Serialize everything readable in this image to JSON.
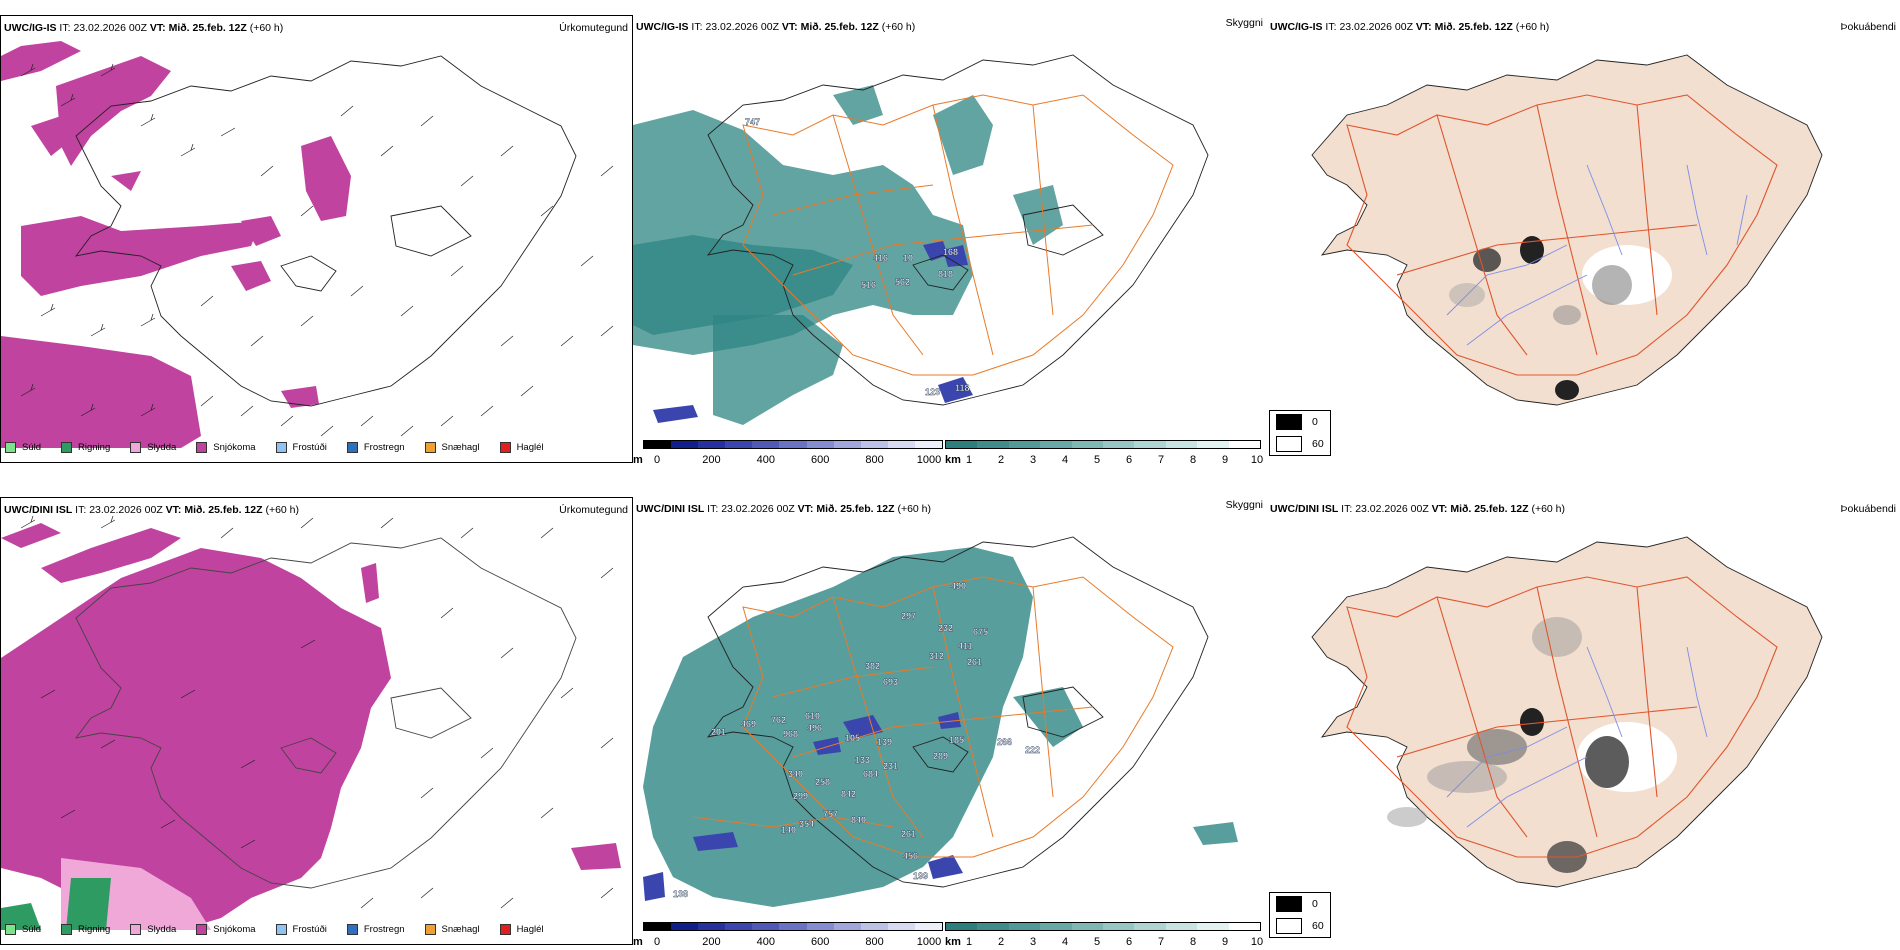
{
  "rows": [
    {
      "model": "UWC/IG-IS",
      "it_label": "IT:",
      "it_value": "23.02.2026 00Z",
      "vt_label": "VT:",
      "vt_value": "Mið. 25.feb. 12Z",
      "lead": "(+60 h)",
      "vis_labels": [
        "747",
        "416",
        "10",
        "168",
        "516",
        "562",
        "818",
        "123",
        "118"
      ]
    },
    {
      "model": "UWC/DINI ISL",
      "it_label": "IT:",
      "it_value": "23.02.2026 00Z",
      "vt_label": "VT:",
      "vt_value": "Mið. 25.feb. 12Z",
      "lead": "(+60 h)",
      "vis_labels": [
        "490",
        "297",
        "232",
        "675",
        "411",
        "312",
        "261",
        "382",
        "693",
        "201",
        "469",
        "762",
        "610",
        "968",
        "496",
        "105",
        "139",
        "185",
        "266",
        "222",
        "133",
        "289",
        "684",
        "231",
        "340",
        "258",
        "299",
        "842",
        "757",
        "840",
        "261",
        "456",
        "199",
        "138",
        "354",
        "140"
      ]
    }
  ],
  "panel_titles": {
    "precip": "Úrkomutegund",
    "visibility": "Skyggni",
    "fog": "Þokuábendi"
  },
  "precip_legend": [
    {
      "label": "Súld",
      "color": "#7de38a"
    },
    {
      "label": "Rigning",
      "color": "#2e9b63"
    },
    {
      "label": "Slydda",
      "color": "#f0a8d8"
    },
    {
      "label": "Snjókoma",
      "color": "#c0439f"
    },
    {
      "label": "Frostúði",
      "color": "#8fc3f2"
    },
    {
      "label": "Frostregn",
      "color": "#2f6fbf"
    },
    {
      "label": "Snæhagl",
      "color": "#f0a030"
    },
    {
      "label": "Haglél",
      "color": "#e02020"
    }
  ],
  "ceiling_bar": {
    "unit": "m",
    "ticks": [
      "0",
      "200",
      "400",
      "600",
      "800",
      "1000"
    ],
    "colors": [
      "#000000",
      "#111f8a",
      "#26309e",
      "#3a46ad",
      "#5059b8",
      "#6a72c4",
      "#858ccf",
      "#a1a7db",
      "#bcc1e6",
      "#d7daf1",
      "#eceefa"
    ]
  },
  "vis_bar": {
    "unit": "km",
    "ticks": [
      "1",
      "2",
      "3",
      "4",
      "5",
      "6",
      "7",
      "8",
      "9",
      "10"
    ],
    "colors": [
      "#2d7f7d",
      "#3f8c8a",
      "#529a98",
      "#68a8a6",
      "#7fb7b5",
      "#97c6c4",
      "#afd5d3",
      "#c8e4e2",
      "#e2f2f1",
      "#ffffff"
    ]
  },
  "fog_legend": [
    {
      "label": "0",
      "color": "#000000"
    },
    {
      "label": "60",
      "color": "#ffffff"
    }
  ],
  "colors": {
    "snow": "#c0439f",
    "rain": "#2e9b63",
    "sleet": "#f0a8d8",
    "vis_teal": "#2d8683",
    "roads": "#e87a2a",
    "land_fog": "#f2dfd0",
    "rivers": "#7d8de8"
  }
}
